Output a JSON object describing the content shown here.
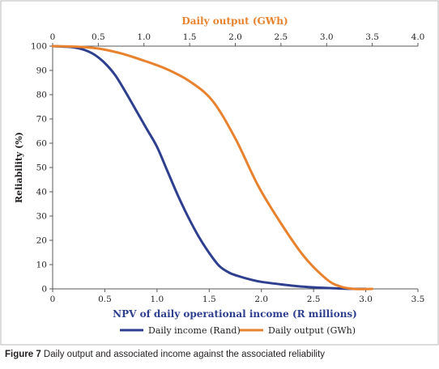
{
  "chart_data": {
    "type": "line",
    "top_axis": {
      "label": "Daily output (GWh)",
      "range": [
        0,
        4.0
      ],
      "ticks": [
        "0",
        "0.5",
        "1.0",
        "1.5",
        "2.0",
        "2.5",
        "3.0",
        "3.5",
        "4.0"
      ]
    },
    "x_axis": {
      "label": "NPV of daily operational income (R millions)",
      "range": [
        0,
        3.5
      ],
      "ticks": [
        "0",
        "0.5",
        "1.0",
        "1.5",
        "2.0",
        "2.5",
        "3.0",
        "3.5"
      ]
    },
    "y_axis": {
      "label": "Reliability (%)",
      "range": [
        0,
        100
      ],
      "ticks": [
        "0",
        "10",
        "20",
        "30",
        "40",
        "50",
        "60",
        "70",
        "80",
        "90",
        "100"
      ]
    },
    "grid": false,
    "legend_position": "bottom",
    "series": [
      {
        "name": "Daily income (Rand)",
        "axis": "bottom",
        "color": "#2e3f8f",
        "x": [
          0,
          0.1,
          0.2,
          0.3,
          0.4,
          0.5,
          0.6,
          0.7,
          0.8,
          0.9,
          1.0,
          1.1,
          1.2,
          1.3,
          1.4,
          1.5,
          1.6,
          1.7,
          1.8,
          1.9,
          2.0,
          2.2,
          2.4,
          2.6,
          2.8,
          3.0
        ],
        "y": [
          100,
          99.8,
          99.5,
          98.5,
          96.5,
          93,
          88,
          81,
          73.5,
          66,
          58.5,
          48.5,
          38.5,
          29.5,
          21.5,
          14.8,
          9.3,
          6.5,
          5,
          3.8,
          2.9,
          1.8,
          0.9,
          0.4,
          0.1,
          0
        ]
      },
      {
        "name": "Daily output (GWh)",
        "axis": "top",
        "color": "#e8822e",
        "x": [
          0,
          0.25,
          0.5,
          0.75,
          1.0,
          1.25,
          1.5,
          1.75,
          2.0,
          2.25,
          2.5,
          2.75,
          3.0,
          3.15,
          3.3,
          3.5
        ],
        "y": [
          100,
          99.8,
          99,
          97,
          94,
          90.5,
          85.5,
          77.5,
          62,
          42.5,
          27,
          13.5,
          4,
          1,
          0,
          0
        ]
      }
    ]
  },
  "caption": {
    "label": "Figure 7",
    "text": " Daily output and associated income against the associated reliability"
  }
}
